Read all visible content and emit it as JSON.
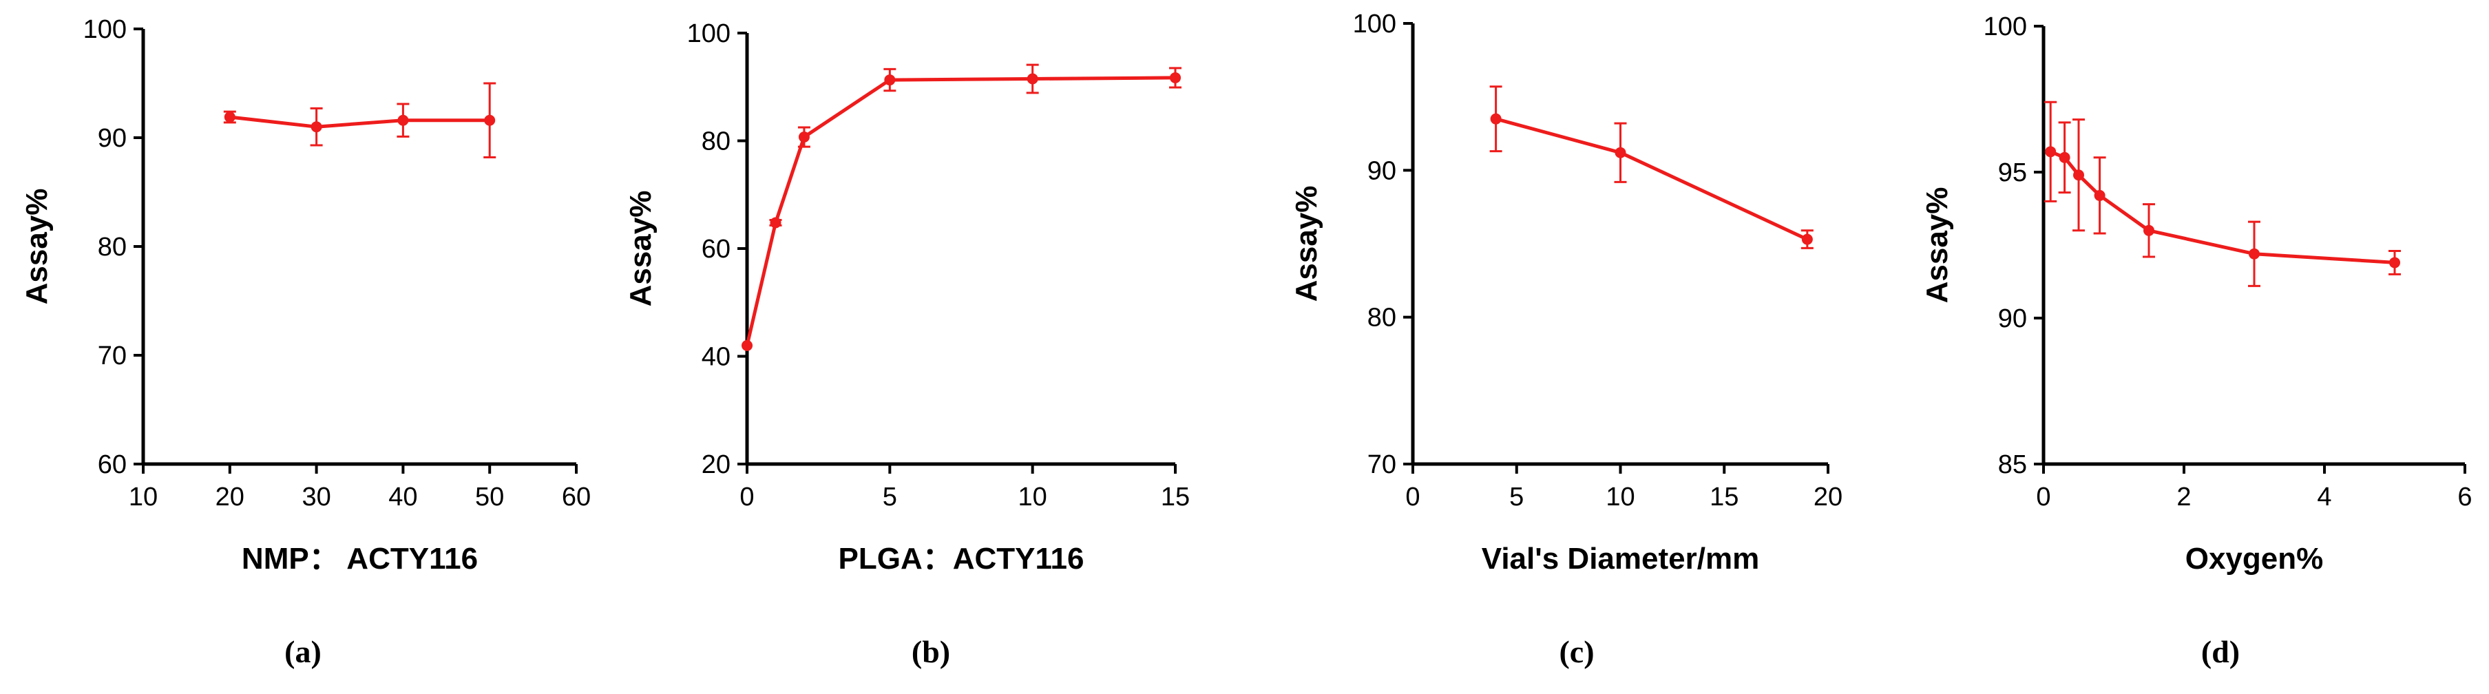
{
  "series_color": "#ee1c1c",
  "chart_data": [
    {
      "type": "line",
      "panel_label": "(a)",
      "xlabel": "NMP： ACTY116",
      "ylabel": "Assay%",
      "xlim": [
        10,
        60
      ],
      "ylim": [
        60,
        100
      ],
      "xticks": [
        10,
        20,
        30,
        40,
        50,
        60
      ],
      "yticks": [
        60,
        70,
        80,
        90,
        100
      ],
      "x": [
        20,
        30,
        40,
        50
      ],
      "y": [
        91.9,
        91.0,
        91.6,
        91.6
      ],
      "err": [
        0.5,
        1.7,
        1.5,
        3.4
      ]
    },
    {
      "type": "line",
      "panel_label": "(b)",
      "xlabel": "PLGA：ACTY116",
      "ylabel": "Assay%",
      "xlim": [
        0,
        15
      ],
      "ylim": [
        20,
        100
      ],
      "xticks": [
        0,
        5,
        10,
        15
      ],
      "yticks": [
        20,
        40,
        60,
        80,
        100
      ],
      "x": [
        0,
        1,
        2,
        5,
        10,
        15
      ],
      "y": [
        42,
        64.8,
        80.7,
        91.3,
        91.5,
        91.7
      ],
      "err": [
        0,
        0.5,
        1.8,
        2.0,
        2.6,
        1.8
      ]
    },
    {
      "type": "line",
      "panel_label": "(c)",
      "xlabel": "Vial's Diameter/mm",
      "ylabel": "Assay%",
      "xlim": [
        0,
        20
      ],
      "ylim": [
        70,
        100
      ],
      "xticks": [
        0,
        5,
        10,
        15,
        20
      ],
      "yticks": [
        70,
        80,
        90,
        100
      ],
      "x": [
        4,
        10,
        19
      ],
      "y": [
        93.5,
        91.2,
        85.3
      ],
      "err": [
        2.2,
        2.0,
        0.6
      ]
    },
    {
      "type": "line",
      "panel_label": "(d)",
      "xlabel": "Oxygen%",
      "ylabel": "Assay%",
      "xlim": [
        0,
        6
      ],
      "ylim": [
        85,
        100
      ],
      "xticks": [
        0,
        2,
        4,
        6
      ],
      "yticks": [
        85,
        90,
        95,
        100
      ],
      "x": [
        0.1,
        0.3,
        0.5,
        0.8,
        1.5,
        3.0,
        5.0
      ],
      "y": [
        95.7,
        95.5,
        94.9,
        94.2,
        93.0,
        92.2,
        91.9
      ],
      "err": [
        1.7,
        1.2,
        1.9,
        1.3,
        0.9,
        1.1,
        0.4
      ]
    }
  ]
}
